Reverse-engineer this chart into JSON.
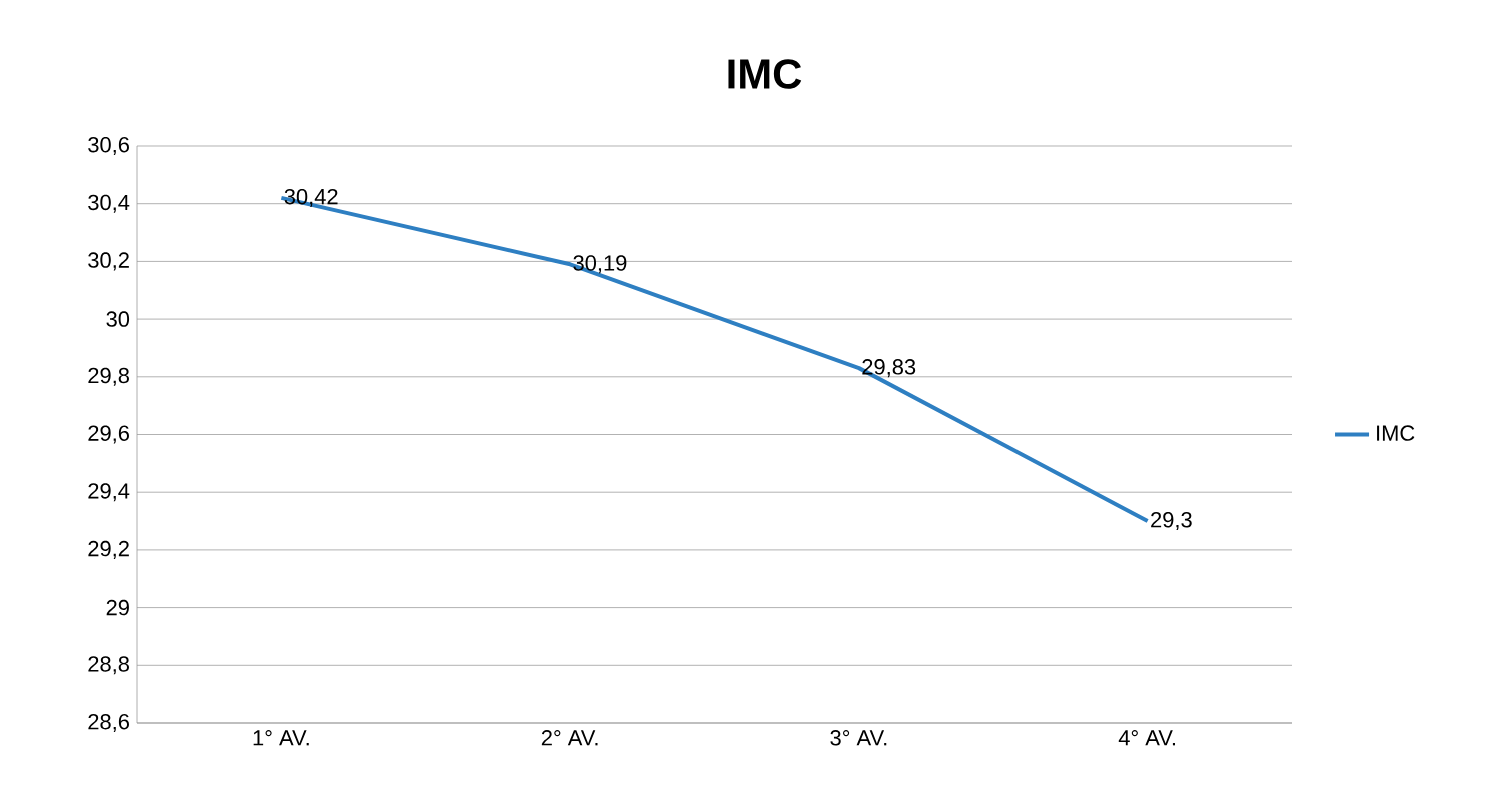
{
  "chart_data": {
    "type": "line",
    "title": "IMC",
    "categories": [
      "1° AV.",
      "2° AV.",
      "3° AV.",
      "4° AV."
    ],
    "series": [
      {
        "name": "IMC",
        "color": "#2e7fc2",
        "values": [
          30.42,
          30.19,
          29.83,
          29.3
        ],
        "value_labels": [
          "30,42",
          "30,19",
          "29,83",
          "29,3"
        ]
      }
    ],
    "ylim": [
      28.6,
      30.6
    ],
    "yticks": [
      {
        "value": 28.6,
        "label": "28,6"
      },
      {
        "value": 28.8,
        "label": "28,8"
      },
      29,
      {
        "value": 29.2,
        "label": "29,2"
      },
      {
        "value": 29.4,
        "label": "29,4"
      },
      {
        "value": 29.6,
        "label": "29,6"
      },
      {
        "value": 29.8,
        "label": "29,8"
      },
      30,
      {
        "value": 30.2,
        "label": "30,2"
      },
      {
        "value": 30.4,
        "label": "30,4"
      },
      {
        "value": 30.6,
        "label": "30,6"
      }
    ],
    "grid": "y",
    "legend": "right",
    "marker": "none",
    "line_style": "solid"
  }
}
